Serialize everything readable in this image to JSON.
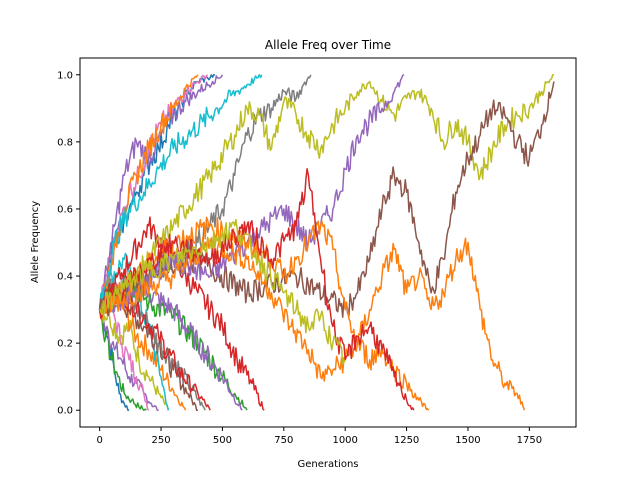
{
  "chart_data": {
    "type": "line",
    "title": "Allele Freq over Time",
    "xlabel": "Generations",
    "ylabel": "Allele Frequency",
    "xlim": [
      -80,
      1940
    ],
    "ylim": [
      -0.05,
      1.05
    ],
    "xticks": [
      0,
      250,
      500,
      750,
      1000,
      1250,
      1500,
      1750
    ],
    "xtick_labels": [
      "0",
      "250",
      "500",
      "750",
      "1000",
      "1250",
      "1500",
      "1750"
    ],
    "yticks": [
      0.0,
      0.2,
      0.4,
      0.6,
      0.8,
      1.0
    ],
    "ytick_labels": [
      "0.0",
      "0.2",
      "0.4",
      "0.6",
      "0.8",
      "1.0"
    ],
    "grid": false,
    "legend": "none",
    "palette": [
      "#1f77b4",
      "#ff7f0e",
      "#2ca02c",
      "#d62728",
      "#9467bd",
      "#8c564b",
      "#e377c2",
      "#7f7f7f",
      "#bcbd22",
      "#17becf"
    ],
    "series": [
      {
        "color": "#1f77b4",
        "x": [
          0,
          20,
          40,
          60,
          80,
          100,
          120
        ],
        "y": [
          0.3,
          0.25,
          0.2,
          0.12,
          0.05,
          0.02,
          0.0
        ]
      },
      {
        "color": "#2ca02c",
        "x": [
          0,
          25,
          50,
          75,
          100,
          130,
          160,
          190
        ],
        "y": [
          0.3,
          0.22,
          0.15,
          0.1,
          0.05,
          0.03,
          0.01,
          0.0
        ]
      },
      {
        "color": "#9467bd",
        "x": [
          0,
          30,
          60,
          90,
          120,
          150,
          180,
          210,
          240
        ],
        "y": [
          0.3,
          0.25,
          0.18,
          0.15,
          0.1,
          0.08,
          0.05,
          0.02,
          0.0
        ]
      },
      {
        "color": "#e377c2",
        "x": [
          0,
          30,
          60,
          90,
          120,
          150,
          180,
          200
        ],
        "y": [
          0.3,
          0.35,
          0.28,
          0.2,
          0.15,
          0.1,
          0.05,
          0.0
        ]
      },
      {
        "color": "#bcbd22",
        "x": [
          0,
          40,
          80,
          120,
          160,
          200,
          240,
          280
        ],
        "y": [
          0.3,
          0.28,
          0.22,
          0.25,
          0.15,
          0.1,
          0.05,
          0.0
        ]
      },
      {
        "color": "#ff7f0e",
        "x": [
          0,
          50,
          100,
          150,
          200,
          250,
          300,
          350
        ],
        "y": [
          0.3,
          0.35,
          0.3,
          0.22,
          0.18,
          0.12,
          0.06,
          0.0
        ]
      },
      {
        "color": "#17becf",
        "x": [
          0,
          50,
          100,
          150,
          200,
          250,
          280
        ],
        "y": [
          0.3,
          0.4,
          0.45,
          0.35,
          0.25,
          0.1,
          0.0
        ]
      },
      {
        "color": "#8c564b",
        "x": [
          0,
          60,
          120,
          180,
          240,
          300,
          360,
          400
        ],
        "y": [
          0.3,
          0.35,
          0.3,
          0.25,
          0.2,
          0.12,
          0.05,
          0.0
        ]
      },
      {
        "color": "#7f7f7f",
        "x": [
          0,
          60,
          120,
          180,
          240,
          300,
          360,
          430
        ],
        "y": [
          0.3,
          0.38,
          0.32,
          0.28,
          0.2,
          0.15,
          0.08,
          0.0
        ]
      },
      {
        "color": "#d62728",
        "x": [
          0,
          80,
          160,
          240,
          320,
          400,
          450
        ],
        "y": [
          0.3,
          0.35,
          0.3,
          0.22,
          0.12,
          0.05,
          0.0
        ]
      },
      {
        "color": "#2ca02c",
        "x": [
          0,
          100,
          200,
          300,
          400,
          480,
          550,
          600
        ],
        "y": [
          0.3,
          0.4,
          0.32,
          0.28,
          0.2,
          0.12,
          0.05,
          0.0
        ]
      },
      {
        "color": "#9467bd",
        "x": [
          0,
          100,
          200,
          300,
          400,
          500,
          580
        ],
        "y": [
          0.3,
          0.38,
          0.35,
          0.3,
          0.2,
          0.1,
          0.0
        ]
      },
      {
        "color": "#d62728",
        "x": [
          0,
          100,
          200,
          300,
          400,
          500,
          560,
          620,
          670
        ],
        "y": [
          0.3,
          0.42,
          0.55,
          0.45,
          0.35,
          0.25,
          0.15,
          0.08,
          0.0
        ]
      },
      {
        "color": "#1f77b4",
        "x": [
          0,
          30,
          60,
          90,
          120,
          150,
          180,
          210,
          240,
          280,
          320,
          360,
          400,
          440,
          470
        ],
        "y": [
          0.3,
          0.4,
          0.5,
          0.55,
          0.6,
          0.65,
          0.7,
          0.75,
          0.78,
          0.85,
          0.9,
          0.95,
          0.98,
          0.99,
          1.0
        ]
      },
      {
        "color": "#e377c2",
        "x": [
          0,
          40,
          80,
          120,
          160,
          200,
          250,
          300,
          350,
          400,
          440
        ],
        "y": [
          0.3,
          0.45,
          0.55,
          0.65,
          0.7,
          0.78,
          0.85,
          0.9,
          0.95,
          0.98,
          1.0
        ]
      },
      {
        "color": "#9467bd",
        "x": [
          0,
          50,
          100,
          150,
          200,
          250,
          300,
          350,
          400,
          460,
          500
        ],
        "y": [
          0.3,
          0.5,
          0.7,
          0.8,
          0.75,
          0.82,
          0.88,
          0.92,
          0.95,
          0.98,
          1.0
        ]
      },
      {
        "color": "#ff7f0e",
        "x": [
          0,
          50,
          100,
          150,
          200,
          250,
          300,
          350,
          400
        ],
        "y": [
          0.3,
          0.45,
          0.6,
          0.7,
          0.78,
          0.85,
          0.9,
          0.96,
          1.0
        ]
      },
      {
        "color": "#17becf",
        "x": [
          0,
          60,
          120,
          180,
          240,
          300,
          360,
          420,
          480,
          520,
          560,
          600,
          640,
          660
        ],
        "y": [
          0.3,
          0.5,
          0.6,
          0.65,
          0.72,
          0.78,
          0.82,
          0.86,
          0.9,
          0.93,
          0.95,
          0.97,
          0.99,
          1.0
        ]
      },
      {
        "color": "#7f7f7f",
        "x": [
          0,
          100,
          200,
          300,
          400,
          500,
          550,
          600,
          650,
          700,
          750,
          800,
          830,
          860
        ],
        "y": [
          0.3,
          0.35,
          0.4,
          0.45,
          0.5,
          0.6,
          0.7,
          0.82,
          0.88,
          0.9,
          0.95,
          0.93,
          0.97,
          1.0
        ]
      },
      {
        "color": "#bcbd22",
        "x": [
          0,
          150,
          300,
          450,
          550,
          600,
          650,
          700,
          750,
          800,
          850,
          900,
          950,
          1000,
          1050,
          1100,
          1150,
          1200,
          1250,
          1300,
          1350,
          1400,
          1450,
          1500,
          1550,
          1600,
          1650,
          1700,
          1750,
          1800,
          1850
        ],
        "y": [
          0.3,
          0.4,
          0.55,
          0.7,
          0.82,
          0.9,
          0.88,
          0.78,
          0.92,
          0.88,
          0.82,
          0.78,
          0.85,
          0.9,
          0.95,
          0.98,
          0.92,
          0.88,
          0.93,
          0.95,
          0.9,
          0.8,
          0.86,
          0.8,
          0.7,
          0.78,
          0.85,
          0.88,
          0.9,
          0.95,
          1.0
        ]
      },
      {
        "color": "#8c564b",
        "x": [
          0,
          200,
          400,
          600,
          800,
          1000,
          1050,
          1100,
          1150,
          1200,
          1250,
          1300,
          1350,
          1400,
          1450,
          1500,
          1550,
          1600,
          1650,
          1700,
          1750,
          1800,
          1850
        ],
        "y": [
          0.3,
          0.4,
          0.45,
          0.35,
          0.4,
          0.3,
          0.35,
          0.45,
          0.6,
          0.7,
          0.65,
          0.5,
          0.35,
          0.45,
          0.65,
          0.75,
          0.82,
          0.9,
          0.88,
          0.8,
          0.75,
          0.85,
          0.98
        ]
      },
      {
        "color": "#9467bd",
        "x": [
          0,
          150,
          300,
          450,
          600,
          750,
          850,
          950,
          1050,
          1150,
          1200,
          1240
        ],
        "y": [
          0.3,
          0.35,
          0.45,
          0.4,
          0.5,
          0.6,
          0.5,
          0.6,
          0.82,
          0.9,
          0.95,
          1.0
        ]
      },
      {
        "color": "#ff7f0e",
        "x": [
          0,
          150,
          300,
          450,
          600,
          700,
          780,
          850,
          900,
          950,
          1000,
          1050,
          1100,
          1150,
          1200,
          1250,
          1300,
          1350,
          1400,
          1450,
          1500,
          1550,
          1600,
          1650,
          1700,
          1730
        ],
        "y": [
          0.3,
          0.35,
          0.4,
          0.5,
          0.45,
          0.35,
          0.25,
          0.18,
          0.1,
          0.12,
          0.15,
          0.2,
          0.3,
          0.4,
          0.48,
          0.35,
          0.4,
          0.3,
          0.35,
          0.45,
          0.5,
          0.3,
          0.15,
          0.08,
          0.05,
          0.0
        ]
      },
      {
        "color": "#ff7f0e",
        "x": [
          0,
          150,
          300,
          450,
          600,
          700,
          750,
          800,
          850,
          900,
          950,
          1000,
          1050,
          1100,
          1150,
          1200,
          1250,
          1300,
          1340
        ],
        "y": [
          0.3,
          0.4,
          0.5,
          0.55,
          0.5,
          0.45,
          0.4,
          0.45,
          0.5,
          0.55,
          0.48,
          0.3,
          0.2,
          0.15,
          0.18,
          0.12,
          0.08,
          0.03,
          0.0
        ]
      },
      {
        "color": "#d62728",
        "x": [
          0,
          150,
          300,
          450,
          600,
          700,
          800,
          850,
          900,
          950,
          1000,
          1050,
          1100,
          1150,
          1200,
          1250,
          1280
        ],
        "y": [
          0.3,
          0.4,
          0.5,
          0.45,
          0.55,
          0.45,
          0.55,
          0.7,
          0.45,
          0.25,
          0.15,
          0.22,
          0.25,
          0.18,
          0.1,
          0.03,
          0.0
        ]
      },
      {
        "color": "#bcbd22",
        "x": [
          0,
          150,
          300,
          450,
          550,
          650,
          750,
          800,
          850,
          900,
          950,
          1000
        ],
        "y": [
          0.3,
          0.4,
          0.45,
          0.5,
          0.55,
          0.45,
          0.35,
          0.3,
          0.25,
          0.28,
          0.2,
          0.15
        ]
      }
    ]
  }
}
